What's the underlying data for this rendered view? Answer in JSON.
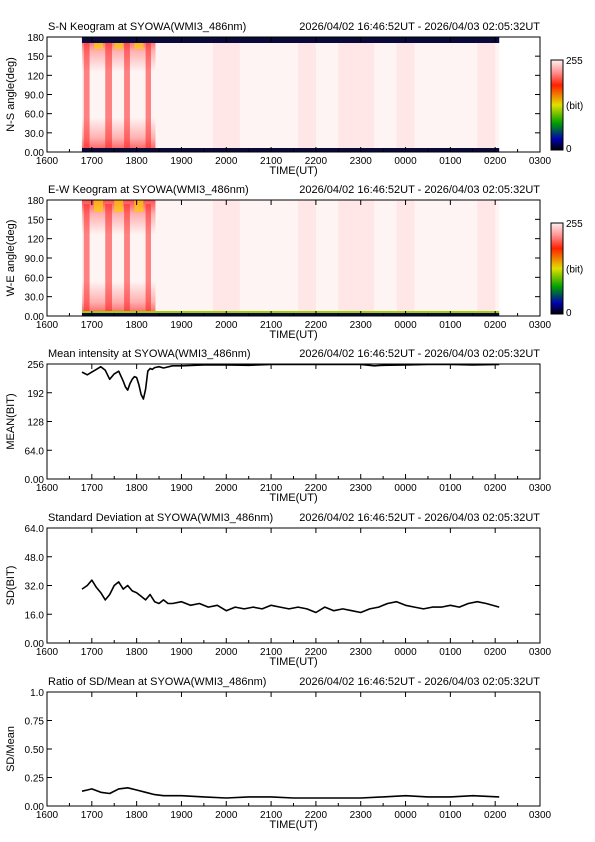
{
  "time_range": "2026/04/02 16:46:52UT - 2026/04/03 02:05:32UT",
  "chart_data": [
    {
      "id": "sn",
      "type": "heatmap",
      "title": "S-N Keogram at SYOWA(WMI3_486nm)",
      "xlabel": "TIME(UT)",
      "ylabel": "N-S angle(deg)",
      "xticks": [
        "1600",
        "1700",
        "1800",
        "1900",
        "2000",
        "2100",
        "2200",
        "2300",
        "0000",
        "0100",
        "0200",
        "0300"
      ],
      "yticks": [
        "0.00",
        "30.0",
        "60.0",
        "90.0",
        "120",
        "150",
        "180"
      ],
      "xlim": [
        16.0,
        27.0
      ],
      "ylim": [
        0,
        180
      ],
      "colorbar": {
        "min": "255",
        "mid": "(bit)",
        "max": "0"
      },
      "data_x_range": [
        16.78,
        26.09
      ]
    },
    {
      "id": "ew",
      "type": "heatmap",
      "title": "E-W Keogram at SYOWA(WMI3_486nm)",
      "xlabel": "TIME(UT)",
      "ylabel": "W-E angle(deg)",
      "xticks": [
        "1600",
        "1700",
        "1800",
        "1900",
        "2000",
        "2100",
        "2200",
        "2300",
        "0000",
        "0100",
        "0200",
        "0300"
      ],
      "yticks": [
        "0.00",
        "30.0",
        "60.0",
        "90.0",
        "120",
        "150",
        "180"
      ],
      "xlim": [
        16.0,
        27.0
      ],
      "ylim": [
        0,
        180
      ],
      "colorbar": {
        "min": "255",
        "mid": "(bit)",
        "max": "0"
      },
      "data_x_range": [
        16.78,
        26.09
      ]
    },
    {
      "id": "mean",
      "type": "line",
      "title": "Mean intensity at SYOWA(WMI3_486nm)",
      "xlabel": "TIME(UT)",
      "ylabel": "MEAN(BIT)",
      "xticks": [
        "1600",
        "1700",
        "1800",
        "1900",
        "2000",
        "2100",
        "2200",
        "2300",
        "0000",
        "0100",
        "0200",
        "0300"
      ],
      "yticks": [
        "0.00",
        "64.0",
        "128",
        "192",
        "256"
      ],
      "xlim": [
        16.0,
        27.0
      ],
      "ylim": [
        0,
        256
      ],
      "x": [
        16.78,
        16.9,
        17.0,
        17.1,
        17.2,
        17.3,
        17.4,
        17.5,
        17.6,
        17.7,
        17.75,
        17.8,
        17.85,
        17.9,
        17.95,
        18.0,
        18.05,
        18.1,
        18.15,
        18.2,
        18.25,
        18.3,
        18.35,
        18.4,
        18.5,
        18.6,
        18.8,
        19.0,
        19.5,
        20.0,
        20.5,
        21.0,
        21.5,
        22.0,
        22.5,
        23.0,
        23.3,
        23.5,
        24.0,
        24.5,
        25.0,
        25.5,
        26.09
      ],
      "y": [
        238,
        232,
        238,
        244,
        250,
        242,
        222,
        234,
        240,
        218,
        205,
        198,
        212,
        222,
        228,
        226,
        210,
        188,
        178,
        200,
        240,
        246,
        244,
        248,
        250,
        247,
        252,
        252,
        254,
        254,
        253,
        255,
        255,
        255,
        255,
        255,
        252,
        253,
        254,
        255,
        255,
        254,
        255
      ]
    },
    {
      "id": "sd",
      "type": "line",
      "title": "Standard Deviation at SYOWA(WMI3_486nm)",
      "xlabel": "TIME(UT)",
      "ylabel": "SD(BIT)",
      "xticks": [
        "1600",
        "1700",
        "1800",
        "1900",
        "2000",
        "2100",
        "2200",
        "2300",
        "0000",
        "0100",
        "0200",
        "0300"
      ],
      "yticks": [
        "0.00",
        "16.0",
        "32.0",
        "48.0",
        "64.0"
      ],
      "xlim": [
        16.0,
        27.0
      ],
      "ylim": [
        0,
        64
      ],
      "x": [
        16.78,
        16.9,
        17.0,
        17.1,
        17.2,
        17.3,
        17.4,
        17.5,
        17.6,
        17.7,
        17.8,
        17.9,
        18.0,
        18.1,
        18.2,
        18.3,
        18.4,
        18.5,
        18.6,
        18.7,
        18.8,
        19.0,
        19.2,
        19.4,
        19.6,
        19.8,
        20.0,
        20.2,
        20.4,
        20.6,
        20.8,
        21.0,
        21.2,
        21.4,
        21.6,
        21.8,
        22.0,
        22.2,
        22.4,
        22.6,
        22.8,
        23.0,
        23.2,
        23.4,
        23.6,
        23.8,
        24.0,
        24.2,
        24.4,
        24.6,
        24.8,
        25.0,
        25.2,
        25.4,
        25.6,
        25.8,
        26.09
      ],
      "y": [
        30,
        32,
        35,
        31,
        28,
        24,
        27,
        32,
        34,
        30,
        32,
        29,
        28,
        26,
        24,
        27,
        23,
        22,
        24,
        22,
        22,
        23,
        21,
        22,
        20,
        21,
        18,
        20,
        19,
        20,
        19,
        21,
        20,
        19,
        20,
        19,
        17,
        20,
        18,
        19,
        18,
        17,
        19,
        20,
        22,
        23,
        21,
        20,
        19,
        20,
        20,
        21,
        20,
        22,
        23,
        22,
        20
      ]
    },
    {
      "id": "ratio",
      "type": "line",
      "title": "Ratio of SD/Mean at SYOWA(WMI3_486nm)",
      "xlabel": "TIME(UT)",
      "ylabel": "SD/Mean",
      "xticks": [
        "1600",
        "1700",
        "1800",
        "1900",
        "2000",
        "2100",
        "2200",
        "2300",
        "0000",
        "0100",
        "0200",
        "0300"
      ],
      "yticks": [
        "0.00",
        "0.25",
        "0.50",
        "0.75",
        "1.0"
      ],
      "xlim": [
        16.0,
        27.0
      ],
      "ylim": [
        0,
        1
      ],
      "x": [
        16.78,
        16.9,
        17.0,
        17.2,
        17.4,
        17.6,
        17.8,
        18.0,
        18.2,
        18.4,
        18.6,
        18.8,
        19.0,
        19.5,
        20.0,
        20.5,
        21.0,
        21.5,
        22.0,
        22.5,
        23.0,
        23.5,
        24.0,
        24.5,
        25.0,
        25.5,
        26.09
      ],
      "y": [
        0.13,
        0.14,
        0.15,
        0.12,
        0.11,
        0.15,
        0.16,
        0.14,
        0.12,
        0.1,
        0.09,
        0.09,
        0.09,
        0.08,
        0.07,
        0.08,
        0.08,
        0.07,
        0.07,
        0.07,
        0.07,
        0.08,
        0.09,
        0.08,
        0.08,
        0.09,
        0.08
      ]
    }
  ]
}
